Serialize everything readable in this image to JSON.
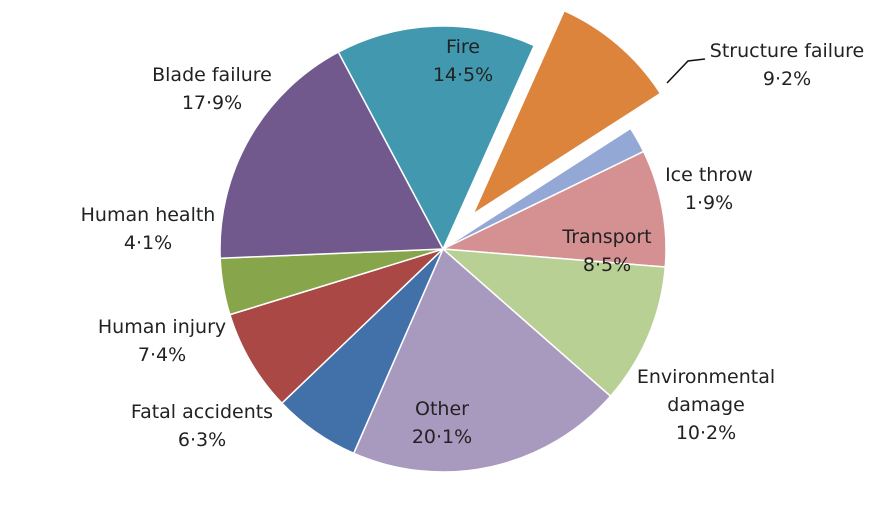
{
  "chart_data": {
    "type": "pie",
    "title": "",
    "slices": [
      {
        "label": "Fire",
        "value": 14.5,
        "value_label": "14·5%",
        "color": "#4298ae",
        "exploded": false
      },
      {
        "label": "Structure failure",
        "value": 9.2,
        "value_label": "9·2%",
        "color": "#dc833c",
        "exploded": true
      },
      {
        "label": "Ice throw",
        "value": 1.9,
        "value_label": "1·9%",
        "color": "#94a8d5",
        "exploded": false
      },
      {
        "label": "Transport",
        "value": 8.5,
        "value_label": "8·5%",
        "color": "#d59191",
        "exploded": false
      },
      {
        "label": "Environmental damage",
        "value": 10.2,
        "value_label": "10·2%",
        "color": "#b9d095",
        "exploded": false
      },
      {
        "label": "Other",
        "value": 20.1,
        "value_label": "20·1%",
        "color": "#a89abf",
        "exploded": false
      },
      {
        "label": "Fatal accidents",
        "value": 6.3,
        "value_label": "6·3%",
        "color": "#4270a8",
        "exploded": false
      },
      {
        "label": "Human injury",
        "value": 7.4,
        "value_label": "7·4%",
        "color": "#a94845",
        "exploded": false
      },
      {
        "label": "Human health",
        "value": 4.1,
        "value_label": "4·1%",
        "color": "#87a54a",
        "exploded": false
      },
      {
        "label": "Blade failure",
        "value": 17.9,
        "value_label": "17·9%",
        "color": "#71598e",
        "exploded": false
      }
    ]
  }
}
